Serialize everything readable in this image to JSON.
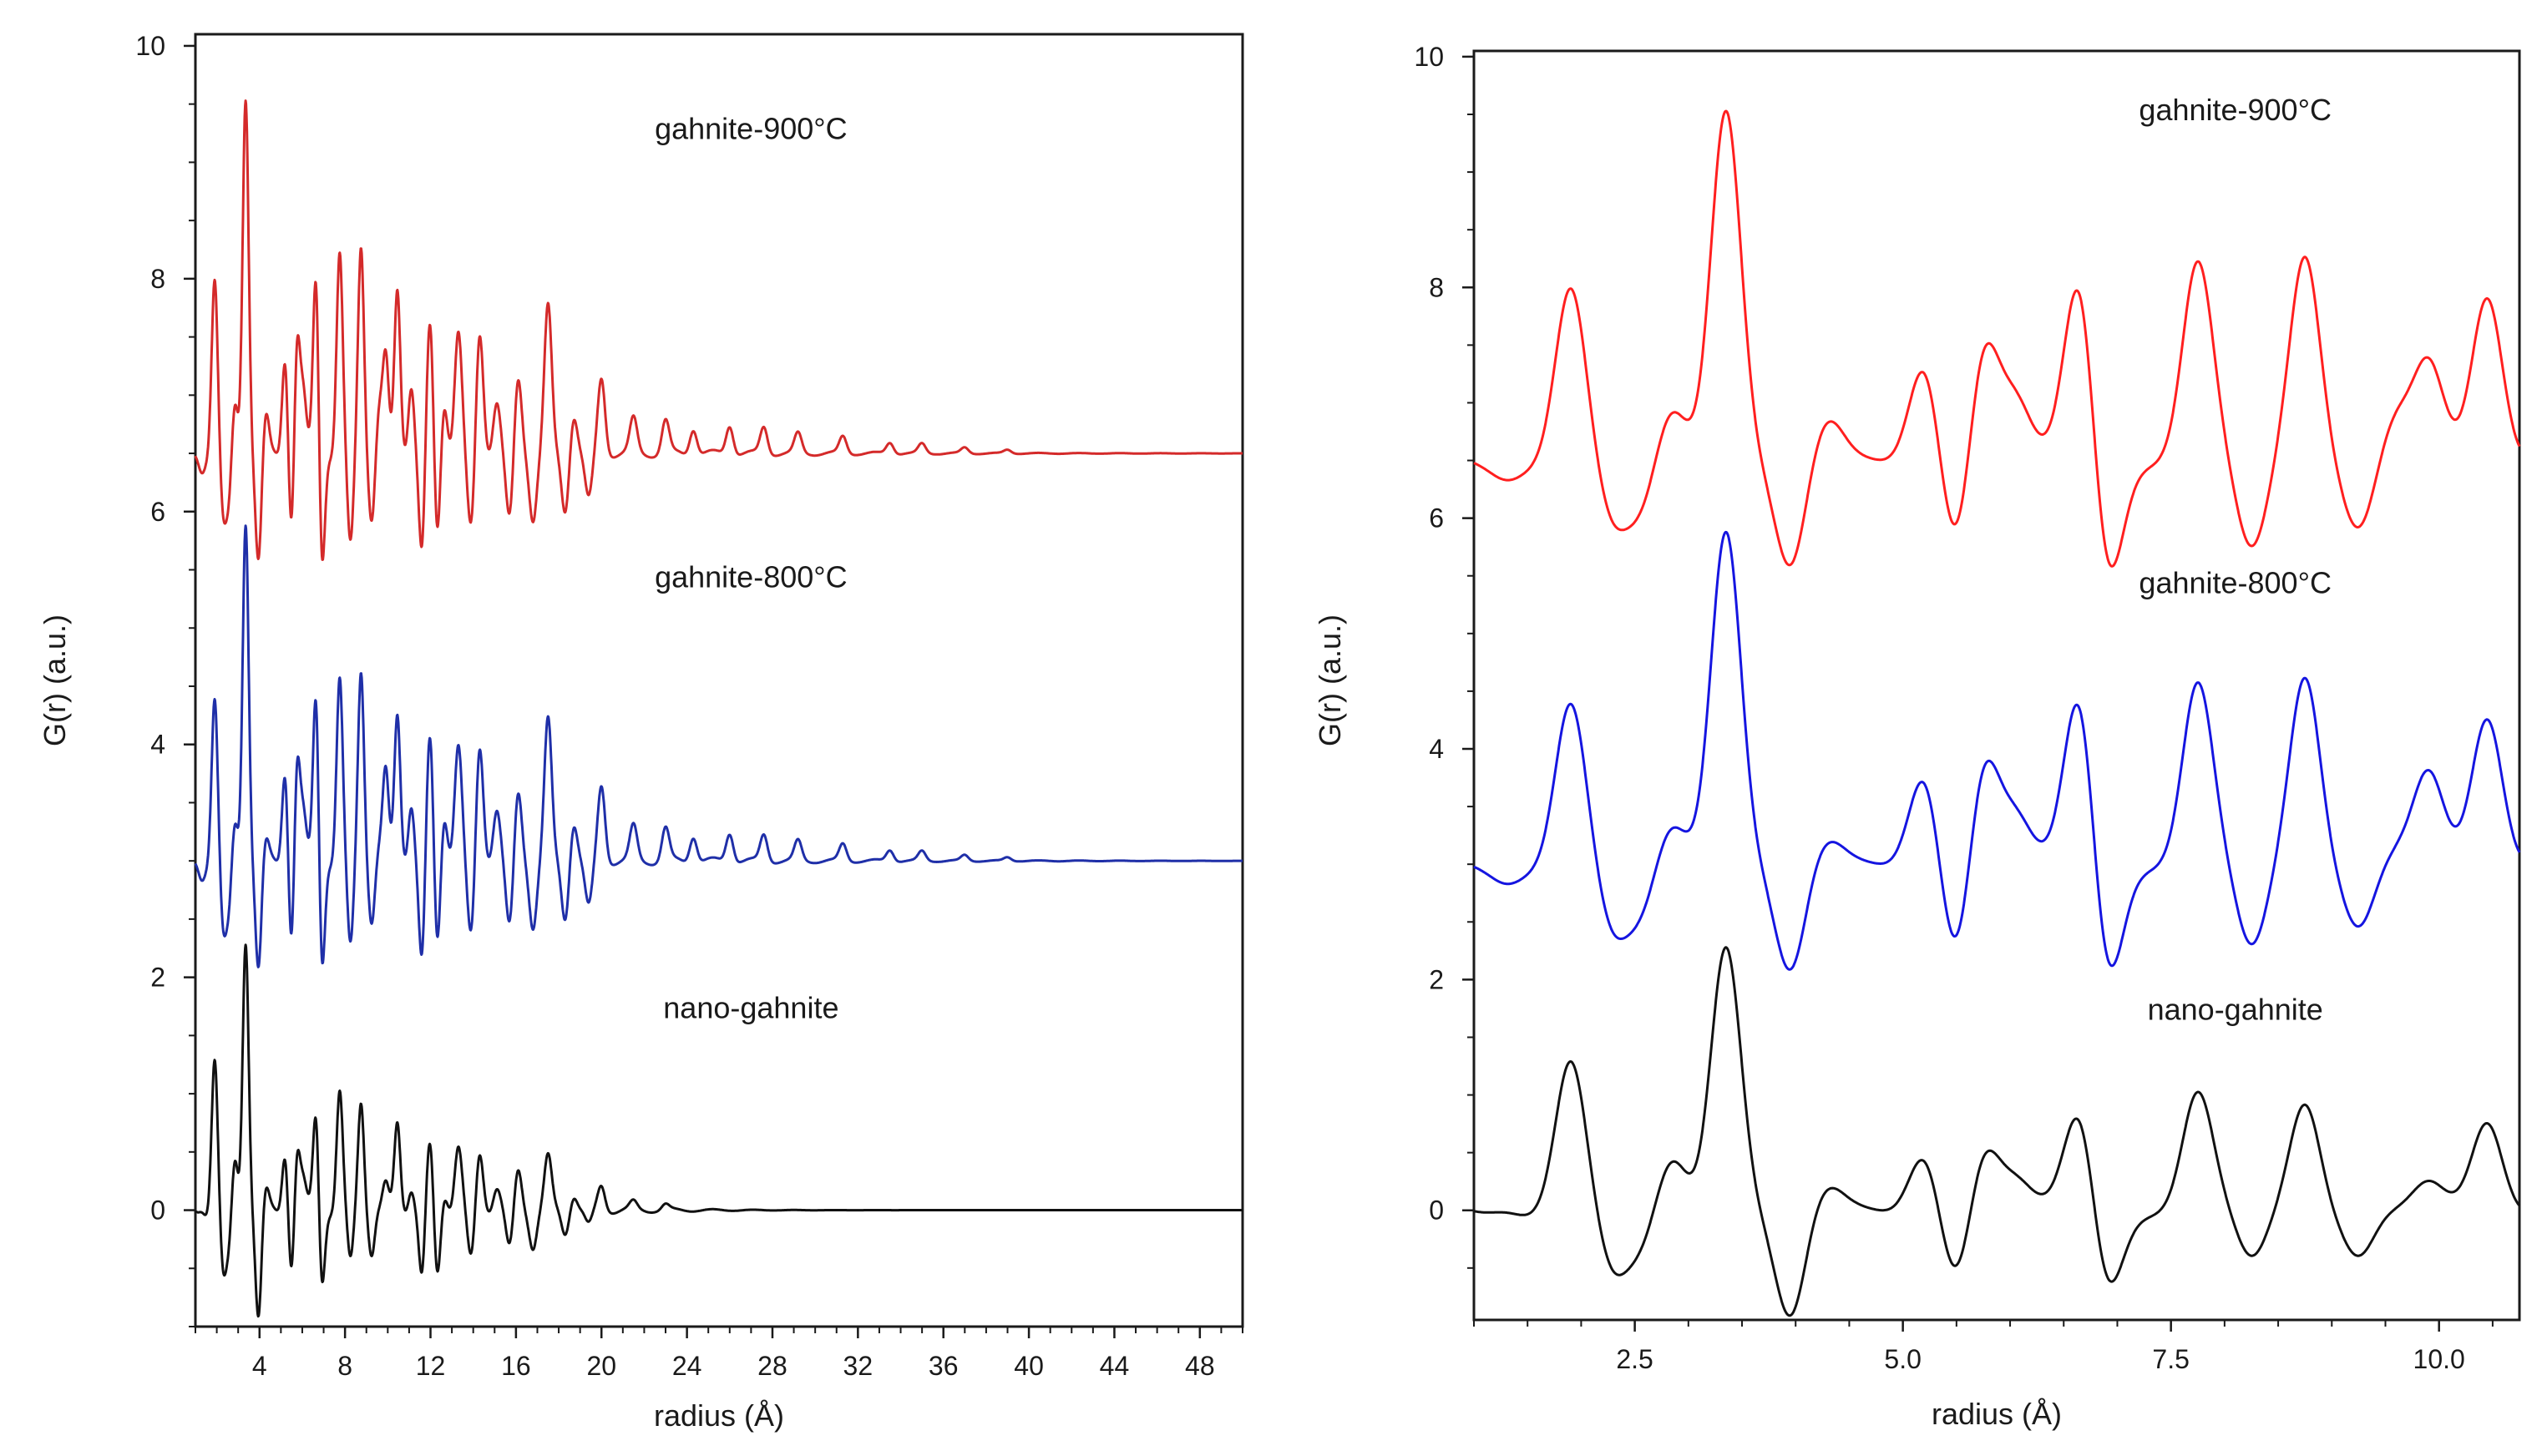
{
  "chart_data": [
    {
      "type": "line",
      "title": "",
      "xlabel": "radius (Å)",
      "ylabel": "G(r) (a.u.)",
      "xlim": [
        1.0,
        50.0
      ],
      "ylim": [
        -1.0,
        10.1
      ],
      "xticks": [
        4,
        8,
        12,
        16,
        20,
        24,
        28,
        32,
        36,
        40,
        44,
        48
      ],
      "yticks": [
        0,
        2,
        4,
        6,
        8,
        10
      ],
      "xticks_minor_step": 1,
      "series": [
        {
          "name": "gahnite-900°C",
          "color": "#d42a2a",
          "offset": 6.5,
          "envelope": "damped",
          "label_at": [
            27.0,
            9.2
          ],
          "peaks": [
            [
              1.3,
              -0.1
            ],
            [
              1.9,
              1.5
            ],
            [
              2.85,
              0.45
            ],
            [
              3.35,
              3.1
            ],
            [
              4.3,
              0.3
            ],
            [
              5.2,
              0.9
            ],
            [
              5.75,
              1.05
            ],
            [
              6.05,
              0.45
            ],
            [
              6.65,
              1.65
            ],
            [
              7.75,
              1.7
            ],
            [
              8.75,
              1.8
            ],
            [
              9.6,
              0.35
            ],
            [
              9.9,
              0.8
            ],
            [
              10.45,
              1.4
            ],
            [
              11.1,
              0.6
            ],
            [
              12.0,
              1.25
            ],
            [
              12.6,
              0.55
            ],
            [
              13.3,
              1.05
            ],
            [
              14.3,
              1.05
            ],
            [
              15.1,
              0.45
            ],
            [
              16.1,
              0.65
            ],
            [
              17.5,
              1.25
            ],
            [
              18.7,
              0.35
            ],
            [
              20.0,
              0.65
            ],
            [
              21.5,
              0.3
            ],
            [
              23.0,
              0.3
            ],
            [
              24.3,
              0.25
            ],
            [
              26.0,
              0.3
            ],
            [
              27.6,
              0.3
            ],
            [
              29.2,
              0.25
            ],
            [
              31.3,
              0.25
            ],
            [
              33.5,
              0.2
            ],
            [
              35.0,
              0.2
            ],
            [
              37.0,
              0.15
            ],
            [
              39.0,
              0.12
            ]
          ],
          "troughs": [
            [
              2.3,
              -0.55
            ],
            [
              2.55,
              -0.45
            ],
            [
              3.95,
              -0.95
            ],
            [
              5.5,
              -0.8
            ],
            [
              6.9,
              -1.1
            ],
            [
              8.25,
              -0.8
            ],
            [
              9.25,
              -0.55
            ],
            [
              11.6,
              -0.9
            ],
            [
              12.3,
              -1.0
            ],
            [
              13.9,
              -0.7
            ],
            [
              15.7,
              -0.6
            ],
            [
              16.8,
              -0.55
            ],
            [
              18.3,
              -0.5
            ],
            [
              19.4,
              -0.4
            ]
          ]
        },
        {
          "name": "gahnite-800°C",
          "color": "#1f2fa8",
          "offset": 3.0,
          "envelope": "damped",
          "label_at": [
            27.0,
            5.35
          ],
          "peaks": [
            [
              1.3,
              -0.1
            ],
            [
              1.9,
              1.4
            ],
            [
              2.85,
              0.35
            ],
            [
              3.35,
              2.95
            ],
            [
              4.3,
              0.15
            ],
            [
              5.2,
              0.85
            ],
            [
              5.75,
              0.95
            ],
            [
              6.05,
              0.35
            ],
            [
              6.65,
              1.55
            ],
            [
              7.75,
              1.55
            ],
            [
              8.75,
              1.65
            ],
            [
              9.6,
              0.1
            ],
            [
              9.9,
              0.75
            ],
            [
              10.45,
              1.25
            ],
            [
              11.1,
              0.5
            ],
            [
              12.0,
              1.2
            ],
            [
              12.6,
              0.5
            ],
            [
              13.3,
              1.0
            ],
            [
              14.3,
              1.0
            ],
            [
              15.1,
              0.45
            ],
            [
              16.1,
              0.6
            ],
            [
              17.5,
              1.2
            ],
            [
              18.7,
              0.35
            ],
            [
              20.0,
              0.65
            ],
            [
              21.5,
              0.3
            ],
            [
              23.0,
              0.3
            ],
            [
              24.3,
              0.25
            ],
            [
              26.0,
              0.3
            ],
            [
              27.6,
              0.3
            ],
            [
              29.2,
              0.25
            ],
            [
              31.3,
              0.25
            ],
            [
              33.5,
              0.2
            ],
            [
              35.0,
              0.2
            ],
            [
              37.0,
              0.15
            ],
            [
              39.0,
              0.12
            ]
          ],
          "troughs": [
            [
              2.3,
              -0.6
            ],
            [
              2.55,
              -0.45
            ],
            [
              3.95,
              -0.95
            ],
            [
              5.5,
              -0.85
            ],
            [
              6.9,
              -1.05
            ],
            [
              8.25,
              -0.75
            ],
            [
              9.25,
              -0.5
            ],
            [
              11.6,
              -0.9
            ],
            [
              12.3,
              -1.0
            ],
            [
              13.9,
              -0.7
            ],
            [
              15.7,
              -0.6
            ],
            [
              16.8,
              -0.55
            ],
            [
              18.3,
              -0.5
            ],
            [
              19.4,
              -0.4
            ]
          ]
        },
        {
          "name": "nano-gahnite",
          "color": "#111111",
          "offset": 0.0,
          "envelope": "fast",
          "label_at": [
            27.0,
            1.65
          ],
          "peaks": [
            [
              1.3,
              0.05
            ],
            [
              1.9,
              1.3
            ],
            [
              2.85,
              0.45
            ],
            [
              3.35,
              2.35
            ],
            [
              4.3,
              0.15
            ],
            [
              5.2,
              0.55
            ],
            [
              5.75,
              0.55
            ],
            [
              6.05,
              0.2
            ],
            [
              6.65,
              0.9
            ],
            [
              7.75,
              1.0
            ],
            [
              8.75,
              0.95
            ],
            [
              9.6,
              0.0
            ],
            [
              9.9,
              0.2
            ],
            [
              10.45,
              0.75
            ],
            [
              11.1,
              0.2
            ],
            [
              12.0,
              0.65
            ],
            [
              12.6,
              0.2
            ],
            [
              13.3,
              0.55
            ],
            [
              14.3,
              0.5
            ],
            [
              15.1,
              0.2
            ],
            [
              16.1,
              0.35
            ],
            [
              17.5,
              0.45
            ],
            [
              18.7,
              0.15
            ],
            [
              20.0,
              0.25
            ],
            [
              21.5,
              0.1
            ],
            [
              23.0,
              0.1
            ]
          ],
          "troughs": [
            [
              2.3,
              -0.55
            ],
            [
              2.55,
              -0.35
            ],
            [
              3.95,
              -0.95
            ],
            [
              5.5,
              -0.6
            ],
            [
              6.9,
              -0.7
            ],
            [
              8.25,
              -0.45
            ],
            [
              9.25,
              -0.35
            ],
            [
              11.6,
              -0.6
            ],
            [
              12.3,
              -0.7
            ],
            [
              13.9,
              -0.45
            ],
            [
              15.7,
              -0.35
            ],
            [
              16.8,
              -0.3
            ],
            [
              18.3,
              -0.2
            ],
            [
              19.4,
              -0.15
            ]
          ]
        }
      ]
    },
    {
      "type": "line",
      "title": "",
      "xlabel": "radius (Å)",
      "ylabel": "G(r) (a.u.)",
      "xlim": [
        1.0,
        10.75
      ],
      "ylim": [
        -0.95,
        10.05
      ],
      "xticks": [
        2.5,
        5.0,
        7.5,
        10.0
      ],
      "xtick_labels": [
        "2.5",
        "5.0",
        "7.5",
        "10.0"
      ],
      "yticks": [
        0,
        2,
        4,
        6,
        8,
        10
      ],
      "xticks_minor_step": 0.5,
      "series": [
        {
          "name": "gahnite-900°C",
          "color": "#ff1f1f",
          "offset": 6.5,
          "envelope": "none",
          "label_at": [
            8.1,
            9.45
          ]
        },
        {
          "name": "gahnite-800°C",
          "color": "#1515e0",
          "offset": 3.0,
          "envelope": "none",
          "label_at": [
            8.1,
            5.35
          ]
        },
        {
          "name": "nano-gahnite",
          "color": "#111111",
          "offset": 0.0,
          "envelope": "none",
          "label_at": [
            8.1,
            1.65
          ]
        }
      ]
    }
  ]
}
